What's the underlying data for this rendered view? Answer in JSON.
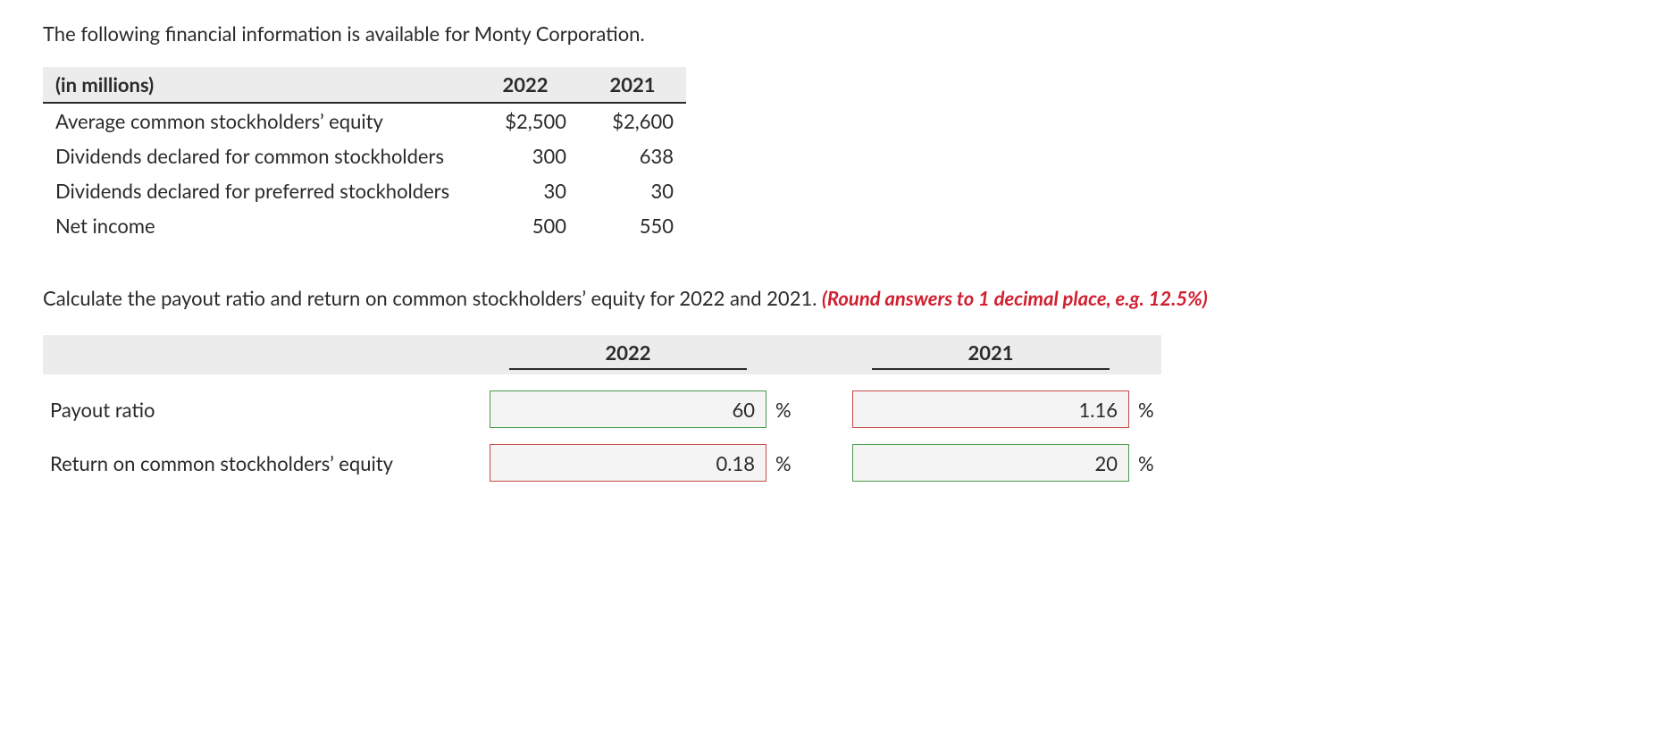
{
  "intro": "The following financial information is available for Monty Corporation.",
  "table": {
    "unit_label": "(in millions)",
    "year_a": "2022",
    "year_b": "2021",
    "rows": [
      {
        "label": "Average common stockholders’ equity",
        "a": "$2,500",
        "b": "$2,600"
      },
      {
        "label": "Dividends declared for common stockholders",
        "a": "300",
        "b": "638"
      },
      {
        "label": "Dividends declared for preferred stockholders",
        "a": "30",
        "b": "30"
      },
      {
        "label": "Net income",
        "a": "500",
        "b": "550"
      }
    ]
  },
  "question": {
    "text": "Calculate the payout ratio and return on common stockholders’ equity for 2022 and 2021. ",
    "hint": "(Round answers to 1 decimal place, e.g. 12.5%)"
  },
  "answers": {
    "year_a": "2022",
    "year_b": "2021",
    "percent": "%",
    "rows": [
      {
        "label": "Payout ratio",
        "a": {
          "value": "60",
          "state": "correct"
        },
        "b": {
          "value": "1.16",
          "state": "wrong"
        }
      },
      {
        "label": "Return on common stockholders’ equity",
        "a": {
          "value": "0.18",
          "state": "wrong"
        },
        "b": {
          "value": "20",
          "state": "correct"
        }
      }
    ],
    "colors": {
      "correct": "#4a9a4a",
      "wrong": "#c84a4a"
    }
  }
}
